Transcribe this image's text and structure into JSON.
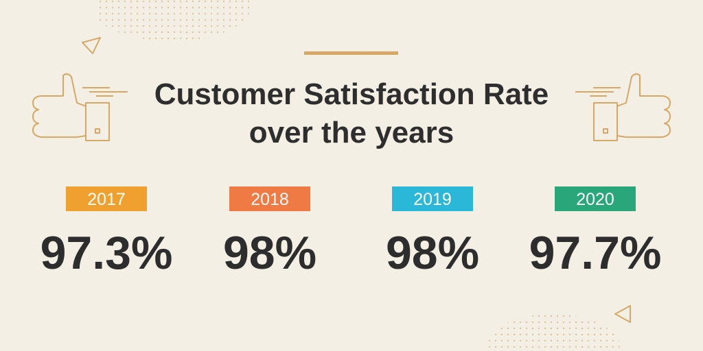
{
  "title": [
    "Customer Satisfaction Rate",
    "over the years"
  ],
  "stats": [
    {
      "year": "2017",
      "value": "97.3%",
      "color": "#efa02f"
    },
    {
      "year": "2018",
      "value": "98%",
      "color": "#ef7a43"
    },
    {
      "year": "2019",
      "value": "98%",
      "color": "#2bb7d7"
    },
    {
      "year": "2020",
      "value": "97.7%",
      "color": "#2aa67b"
    }
  ]
}
